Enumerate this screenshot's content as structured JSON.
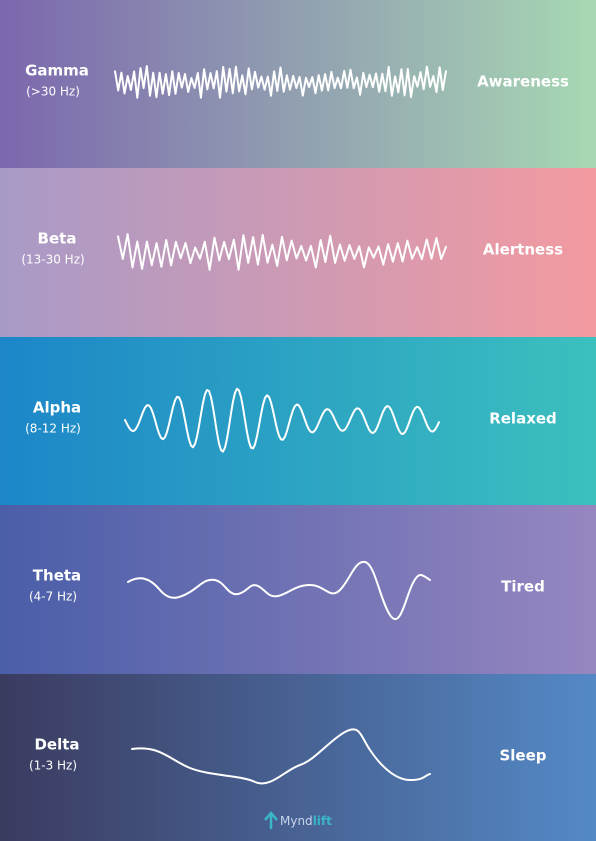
{
  "bands": [
    {
      "name": "Gamma",
      "frequency": "(>30 Hz)",
      "state": "Awareness"
    },
    {
      "name": "Beta",
      "frequency": "(13-30 Hz)",
      "state": "Alertness"
    },
    {
      "name": "Alpha",
      "frequency": "(8-12 Hz)",
      "state": "Relaxed"
    },
    {
      "name": "Theta",
      "frequency": "(4-7 Hz)",
      "state": "Tired"
    },
    {
      "name": "Delta",
      "frequency": "(1-3 Hz)",
      "state": "Sleep"
    }
  ],
  "logo": {
    "parts": [
      "Mynd",
      "lift"
    ]
  }
}
